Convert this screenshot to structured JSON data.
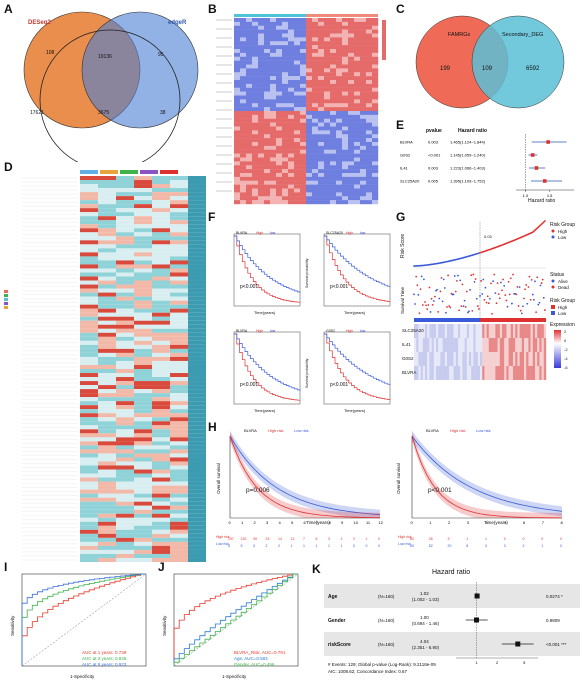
{
  "panel_letters": {
    "A": "A",
    "B": "B",
    "C": "C",
    "D": "D",
    "E": "E",
    "F": "F",
    "G": "G",
    "H": "H",
    "I": "I",
    "J": "J",
    "K": "K"
  },
  "venn_a": {
    "left_set": "DESeq2",
    "right_set": "edgeR",
    "bottom_set": "",
    "values": {
      "left_only": "17621",
      "left_mid": "108",
      "center": "19136",
      "right_mid": "95",
      "right_only": "38",
      "bottom_mid": "3675"
    }
  },
  "venn_c": {
    "left_set": "FAMRGs",
    "right_set": "Secondary_DEG",
    "values": {
      "left": "199",
      "center": "109",
      "right": "6592"
    },
    "colors": {
      "left": "#ef6b57",
      "right": "#5bbfd6"
    }
  },
  "forest_e": {
    "header_pvalue": "pvalue",
    "header_hr": "Hazard ratio",
    "rows": [
      {
        "gene": "BLVRA",
        "pvalue": "0.003",
        "hr": "1.465(1.124~1.844)",
        "est": 1.465,
        "lo": 1.124,
        "hi": 1.844
      },
      {
        "gene": "G0S2",
        "pvalue": "<0.001",
        "hr": "1.145(1.059~1.240)",
        "est": 1.145,
        "lo": 1.059,
        "hi": 1.24
      },
      {
        "gene": "IL41",
        "pvalue": "0.003",
        "hr": "1.223(1.066~1.403)",
        "est": 1.223,
        "lo": 1.066,
        "hi": 1.403
      },
      {
        "gene": "SLC25A20",
        "pvalue": "0.005",
        "hr": "1.395(1.109~1.752)",
        "est": 1.395,
        "lo": 1.109,
        "hi": 1.752
      }
    ],
    "x_ticks": [
      "1.0",
      "1.5"
    ],
    "x_label": "Hazard ratio"
  },
  "km_f": {
    "legend": [
      "High",
      "low"
    ],
    "plots": [
      {
        "gene": "BLVRA",
        "p": "p<0.001"
      },
      {
        "gene": "SLC25A20",
        "p": "p<0.001"
      },
      {
        "gene": "BLVRA",
        "p": "p<0.001"
      },
      {
        "gene": "G0S2",
        "p": "p<0.001"
      }
    ],
    "x_label": "Time(years)",
    "y_label": "Survival probability"
  },
  "risk_g": {
    "y1": "Risk Score",
    "y2": "Survival Time",
    "legend_group_title": "Risk Group",
    "legend_group": [
      "High",
      "Low"
    ],
    "legend_status_title": "Status",
    "legend_status": [
      "Alive",
      "Dead"
    ],
    "legend_group2_title": "Risk Group",
    "legend_expr_title": "Expression",
    "expr_ticks": [
      "2",
      "0",
      "-2",
      "-4",
      "-6"
    ],
    "genes": [
      "SLC25A20",
      "IL41",
      "G0S2",
      "BLVRA"
    ],
    "cutoff_label": "0.03"
  },
  "km_h": {
    "left": {
      "gene": "BLVRA",
      "legend": [
        "High risk",
        "Low risk"
      ],
      "p": "p=0.006",
      "ylabel": "Overall survival",
      "xlabel": "Time(years)",
      "ticks": [
        "0",
        "1",
        "2",
        "3",
        "4",
        "5",
        "6",
        "7",
        "8",
        "9",
        "10",
        "11",
        "12"
      ],
      "risk_high": [
        "197",
        "120",
        "39",
        "23",
        "14",
        "12",
        "7",
        "6",
        "3",
        "2",
        "2",
        "1",
        "0"
      ],
      "risk_low": [
        "8",
        "5",
        "3",
        "2",
        "2",
        "1",
        "1",
        "1",
        "1",
        "1",
        "0",
        "0",
        "0"
      ]
    },
    "right": {
      "gene": "BLVRA",
      "legend": [
        "High risk",
        "Low risk"
      ],
      "p": "p<0.001",
      "ylabel": "Overall survival",
      "xlabel": "Time(years)",
      "ticks": [
        "0",
        "1",
        "2",
        "3",
        "4",
        "5",
        "6",
        "7",
        "8"
      ],
      "risk_high": [
        "80",
        "26",
        "3",
        "1",
        "1",
        "0",
        "0",
        "0",
        "0"
      ],
      "risk_low": [
        "80",
        "52",
        "20",
        "8",
        "3",
        "3",
        "2",
        "1",
        "0"
      ]
    },
    "risk_label_high": "High risk",
    "risk_label_low": "Low risk"
  },
  "roc_i": {
    "legend": [
      "AUC at 1 years: 0.739",
      "AUC at 3 years: 0.845",
      "AUC at 5 years: 0.923"
    ],
    "colors": [
      "#e8392b",
      "#3cb44b",
      "#3a6fd8"
    ],
    "x_label": "1-Specificity",
    "y_label": "Sensitivity"
  },
  "roc_j": {
    "legend": [
      "BLVRA_Risk, AUC=0.791",
      "Age, AUC=0.583",
      "Gender, AUC=0.496"
    ],
    "colors": [
      "#e8392b",
      "#2a7ad8",
      "#3cb44b"
    ],
    "x_label": "1-Specificity",
    "y_label": "Sensitivity"
  },
  "forest_k": {
    "title": "Hazard ratio",
    "rows": [
      {
        "var": "Age",
        "n": "(N=160)",
        "hr": "1.02",
        "ci": "(1.002 - 1.03)",
        "p": "0.0274 *",
        "est": 1.02,
        "lo": 1.002,
        "hi": 1.03
      },
      {
        "var": "Gender",
        "n": "(N=160)",
        "hr": "1.00",
        "ci": "(0.694 - 1.46)",
        "p": "0.9809",
        "est": 1.0,
        "lo": 0.694,
        "hi": 1.46
      },
      {
        "var": "riskScore",
        "n": "(N=160)",
        "hr": "4.04",
        "ci": "(2.351 - 6.90)",
        "p": "<0.001 ***",
        "est": 4.04,
        "lo": 2.351,
        "hi": 6.9
      }
    ],
    "footer1": "# Events: 129; Global p-value (Log-Rank): 9.2118e-09",
    "footer2": "AIC: 1008.62; Concordance Index: 0.67",
    "x_ticks": [
      "1",
      "2",
      "5"
    ]
  },
  "chart_data": [
    {
      "type": "line",
      "panel": "I",
      "series": [
        {
          "name": "AUC at 1 years: 0.739"
        },
        {
          "name": "AUC at 3 years: 0.845"
        },
        {
          "name": "AUC at 5 years: 0.923"
        }
      ]
    },
    {
      "type": "line",
      "panel": "J",
      "series": [
        {
          "name": "BLVRA_Risk, AUC=0.791"
        },
        {
          "name": "Age, AUC=0.583"
        },
        {
          "name": "Gender, AUC=0.496"
        }
      ]
    }
  ]
}
